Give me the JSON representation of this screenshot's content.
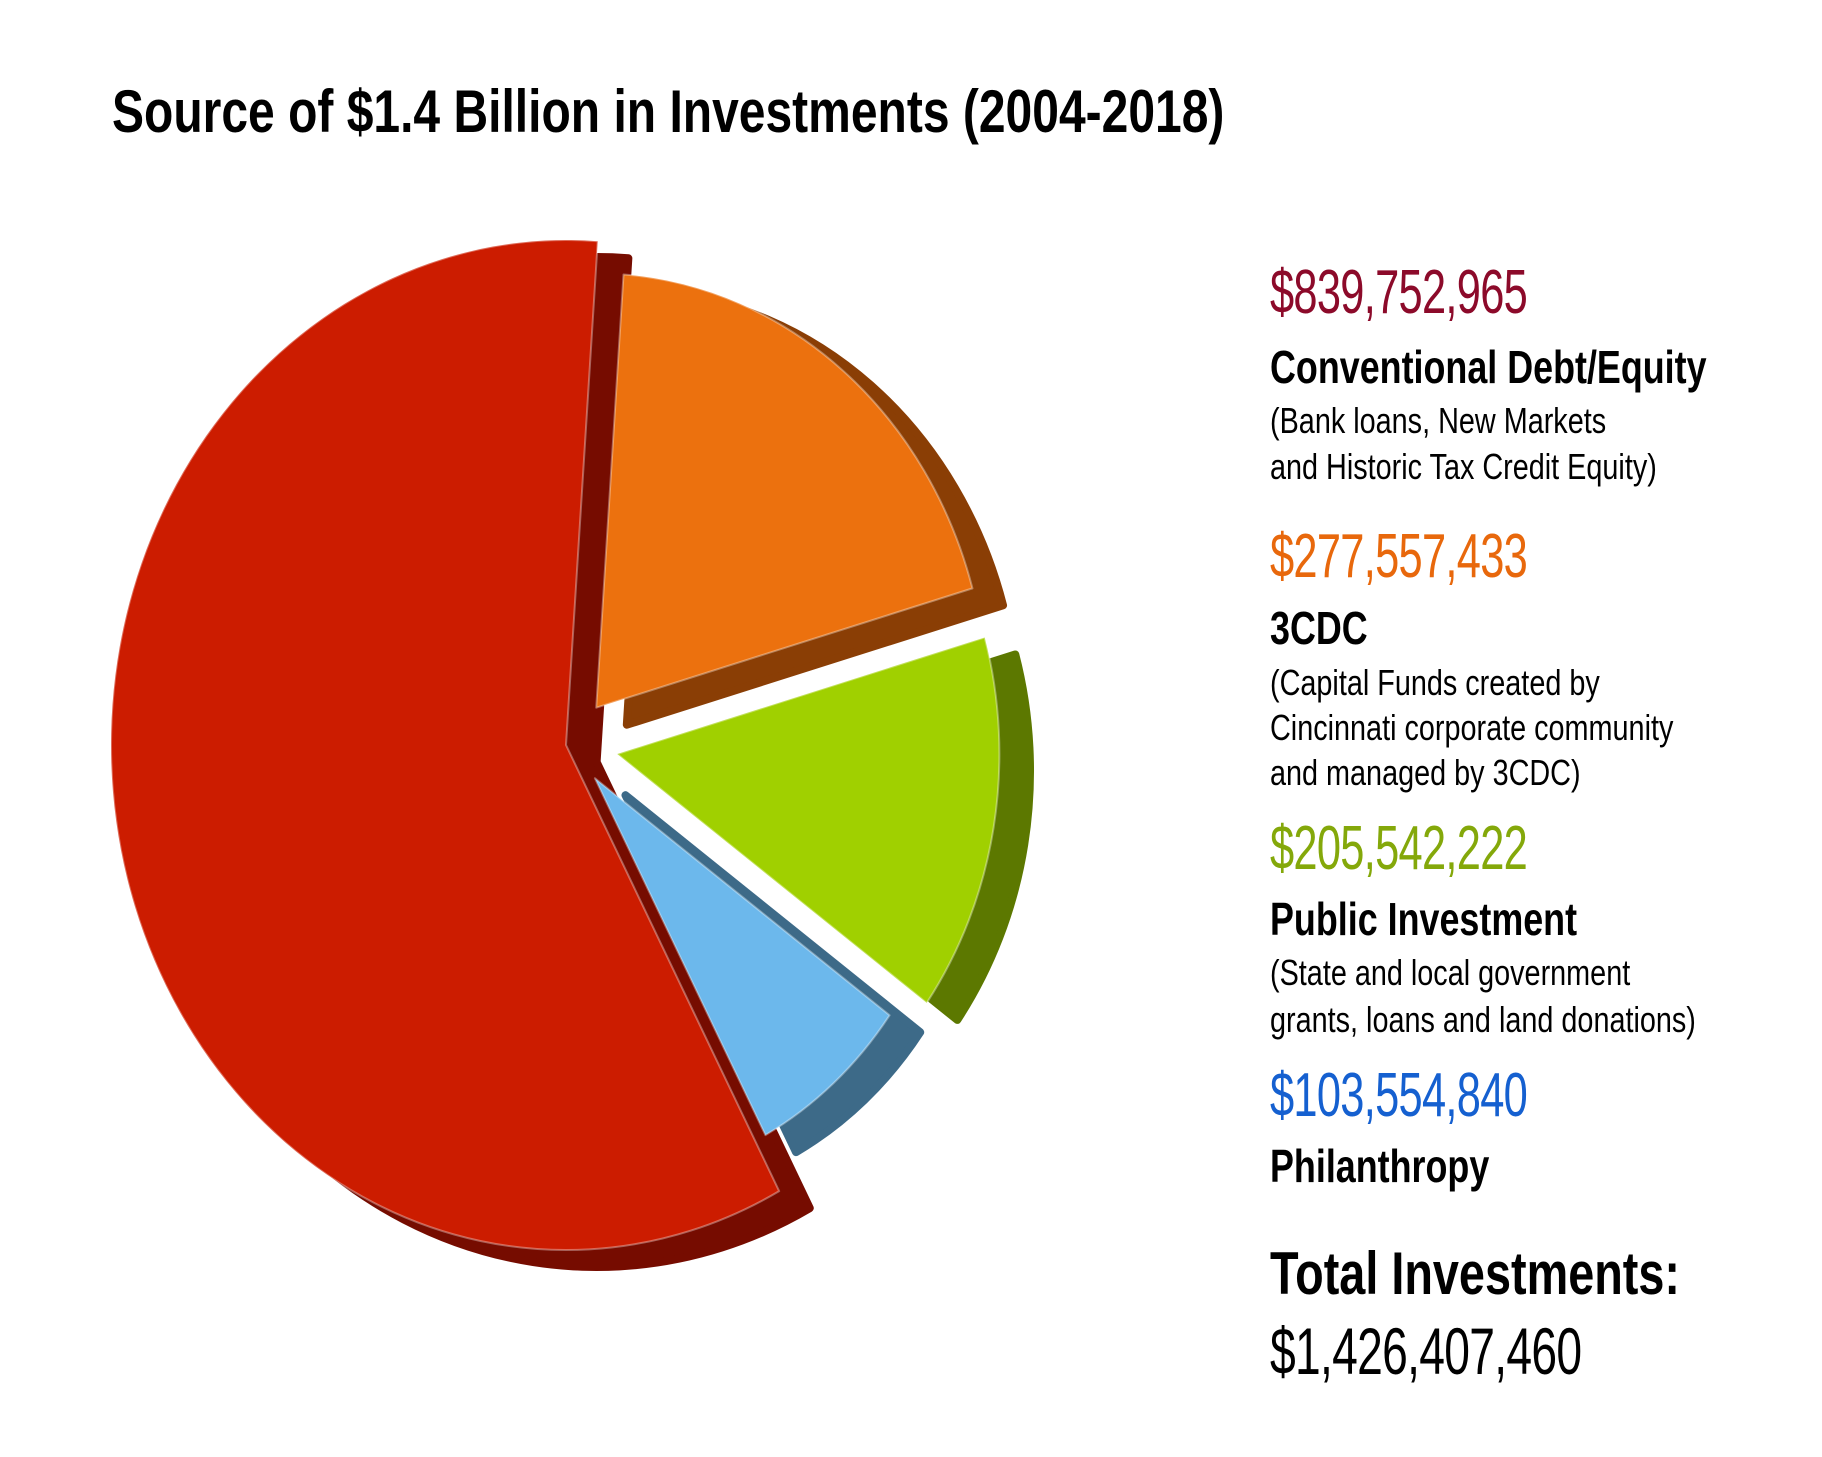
{
  "title": "Source of $1.4 Billion in Investments (2004-2018)",
  "legend": [
    {
      "amount": "$839,752,965",
      "label": "Conventional Debt/Equity",
      "sub": [
        "(Bank loans, New Markets",
        "and Historic Tax Credit Equity)"
      ],
      "color": "#8c0a2a"
    },
    {
      "amount": "$277,557,433",
      "label": "3CDC",
      "sub": [
        "(Capital Funds created by",
        "Cincinnati corporate community",
        "and managed by 3CDC)"
      ],
      "color": "#e8680c"
    },
    {
      "amount": "$205,542,222",
      "label": "Public Investment",
      "sub": [
        "(State and local government",
        "grants, loans and land donations)"
      ],
      "color": "#84a80a"
    },
    {
      "amount": "$103,554,840",
      "label": "Philanthropy",
      "sub": [],
      "color": "#1560d0"
    }
  ],
  "total": {
    "label": "Total Investments:",
    "amount": "$1,426,407,460"
  },
  "chart_data": {
    "type": "pie",
    "title": "Source of $1.4 Billion in Investments (2004-2018)",
    "categories": [
      "Conventional Debt/Equity",
      "3CDC",
      "Public Investment",
      "Philanthropy"
    ],
    "values": [
      839752965,
      277557433,
      205542222,
      103554840
    ],
    "total": 1426407460,
    "slice_colors": [
      "#cc1c00",
      "#ec710e",
      "#a0d000",
      "#6cb8ec"
    ],
    "legend_position": "right",
    "style": "3d exploded"
  }
}
